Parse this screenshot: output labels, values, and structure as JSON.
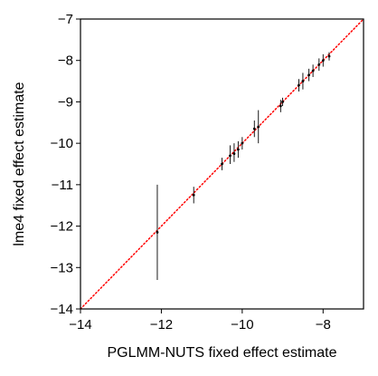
{
  "chart_data": {
    "type": "scatter",
    "title": "",
    "xlabel": "PGLMM-NUTS fixed effect estimate",
    "ylabel": "lme4 fixed effect estimate",
    "xlim": [
      -14,
      -7
    ],
    "ylim": [
      -14,
      -7
    ],
    "xticks": [
      -14,
      -12,
      -10,
      -8
    ],
    "xtick_labels": [
      "−14",
      "−12",
      "−10",
      "−8"
    ],
    "yticks": [
      -14,
      -13,
      -12,
      -11,
      -10,
      -9,
      -8,
      -7
    ],
    "ytick_labels": [
      "−14",
      "−13",
      "−12",
      "−11",
      "−10",
      "−9",
      "−8",
      "−7"
    ],
    "reference_line": {
      "slope": 1,
      "intercept": 0,
      "style": "dotted",
      "color": "#ff0000"
    },
    "grid": false,
    "points": [
      {
        "x": -12.1,
        "y": -12.15,
        "ylow": -13.3,
        "yhigh": -11.0
      },
      {
        "x": -11.2,
        "y": -11.25,
        "ylow": -11.45,
        "yhigh": -11.05
      },
      {
        "x": -10.5,
        "y": -10.5,
        "ylow": -10.65,
        "yhigh": -10.35
      },
      {
        "x": -10.3,
        "y": -10.3,
        "ylow": -10.5,
        "yhigh": -10.05
      },
      {
        "x": -10.2,
        "y": -10.25,
        "ylow": -10.45,
        "yhigh": -10.0
      },
      {
        "x": -10.1,
        "y": -10.15,
        "ylow": -10.35,
        "yhigh": -9.95
      },
      {
        "x": -10.0,
        "y": -10.0,
        "ylow": -10.15,
        "yhigh": -9.85
      },
      {
        "x": -9.7,
        "y": -9.65,
        "ylow": -9.85,
        "yhigh": -9.45
      },
      {
        "x": -9.6,
        "y": -9.6,
        "ylow": -10.0,
        "yhigh": -9.2
      },
      {
        "x": -9.05,
        "y": -9.1,
        "ylow": -9.25,
        "yhigh": -8.95
      },
      {
        "x": -9.0,
        "y": -9.0,
        "ylow": -9.1,
        "yhigh": -8.9
      },
      {
        "x": -8.6,
        "y": -8.6,
        "ylow": -8.75,
        "yhigh": -8.45
      },
      {
        "x": -8.5,
        "y": -8.5,
        "ylow": -8.7,
        "yhigh": -8.3
      },
      {
        "x": -8.35,
        "y": -8.35,
        "ylow": -8.5,
        "yhigh": -8.2
      },
      {
        "x": -8.25,
        "y": -8.25,
        "ylow": -8.4,
        "yhigh": -8.1
      },
      {
        "x": -8.1,
        "y": -8.1,
        "ylow": -8.25,
        "yhigh": -7.95
      },
      {
        "x": -8.0,
        "y": -8.0,
        "ylow": -8.15,
        "yhigh": -7.85
      },
      {
        "x": -7.85,
        "y": -7.9,
        "ylow": -8.0,
        "yhigh": -7.8
      }
    ]
  }
}
